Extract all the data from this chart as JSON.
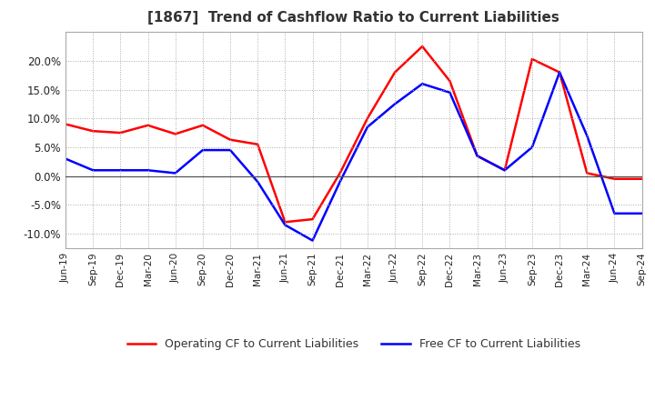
{
  "title": "[1867]  Trend of Cashflow Ratio to Current Liabilities",
  "x_labels": [
    "Jun-19",
    "Sep-19",
    "Dec-19",
    "Mar-20",
    "Jun-20",
    "Sep-20",
    "Dec-20",
    "Mar-21",
    "Jun-21",
    "Sep-21",
    "Dec-21",
    "Mar-22",
    "Jun-22",
    "Sep-22",
    "Dec-22",
    "Mar-23",
    "Jun-23",
    "Sep-23",
    "Dec-23",
    "Mar-24",
    "Jun-24",
    "Sep-24"
  ],
  "operating_cf": [
    9.0,
    7.8,
    7.5,
    8.8,
    7.3,
    8.8,
    6.3,
    5.5,
    -8.0,
    -7.5,
    0.5,
    10.0,
    18.0,
    22.5,
    16.5,
    3.5,
    1.0,
    20.3,
    18.0,
    0.5,
    -0.5,
    -0.5
  ],
  "free_cf": [
    3.0,
    1.0,
    1.0,
    1.0,
    0.5,
    4.5,
    4.5,
    -1.0,
    -8.5,
    -11.2,
    -1.0,
    8.5,
    12.5,
    16.0,
    14.5,
    3.5,
    1.0,
    5.0,
    18.0,
    7.0,
    -6.5,
    -6.5
  ],
  "operating_color": "#ff0000",
  "free_color": "#0000ff",
  "ylim": [
    -12.5,
    25
  ],
  "yticks": [
    -10.0,
    -5.0,
    0.0,
    5.0,
    10.0,
    15.0,
    20.0
  ],
  "background_color": "#ffffff",
  "title_fontsize": 11,
  "legend_labels": [
    "Operating CF to Current Liabilities",
    "Free CF to Current Liabilities"
  ]
}
